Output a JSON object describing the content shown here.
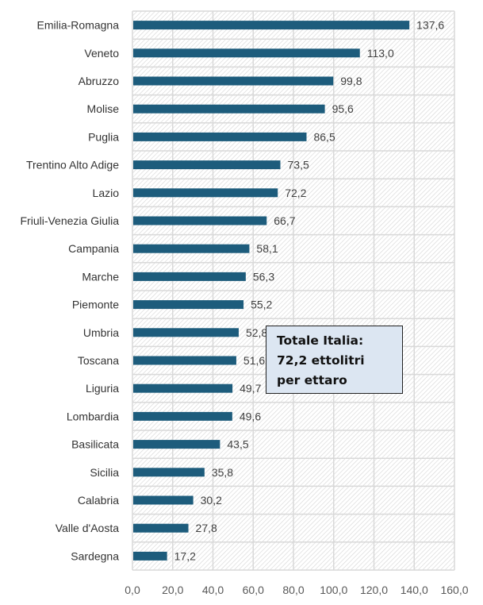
{
  "chart_data": {
    "type": "bar",
    "orientation": "horizontal",
    "categories": [
      "Emilia-Romagna",
      "Veneto",
      "Abruzzo",
      "Molise",
      "Puglia",
      "Trentino Alto Adige",
      "Lazio",
      "Friuli-Venezia Giulia",
      "Campania",
      "Marche",
      "Piemonte",
      "Umbria",
      "Toscana",
      "Liguria",
      "Lombardia",
      "Basilicata",
      "Sicilia",
      "Calabria",
      "Valle d'Aosta",
      "Sardegna"
    ],
    "values": [
      137.6,
      113.0,
      99.8,
      95.6,
      86.5,
      73.5,
      72.2,
      66.7,
      58.1,
      56.3,
      55.2,
      52.8,
      51.6,
      49.7,
      49.6,
      43.5,
      35.8,
      30.2,
      27.8,
      17.2
    ],
    "labels": [
      "137,6",
      "113,0",
      "99,8",
      "95,6",
      "86,5",
      "73,5",
      "72,2",
      "66,7",
      "58,1",
      "56,3",
      "55,2",
      "52,8",
      "51,6",
      "49,7",
      "49,6",
      "43,5",
      "35,8",
      "30,2",
      "27,8",
      "17,2"
    ],
    "xlim": [
      0,
      160
    ],
    "xticks": [
      "0,0",
      "20,0",
      "40,0",
      "60,0",
      "80,0",
      "100,0",
      "120,0",
      "140,0",
      "160,0"
    ],
    "grid": true,
    "bar_color": "#1d5c7c",
    "annotation": {
      "lines": [
        "Totale Italia:",
        "72,2 ettolitri",
        "per ettaro"
      ],
      "background": "#dce6f2"
    },
    "title": "",
    "xlabel": "",
    "ylabel": ""
  }
}
